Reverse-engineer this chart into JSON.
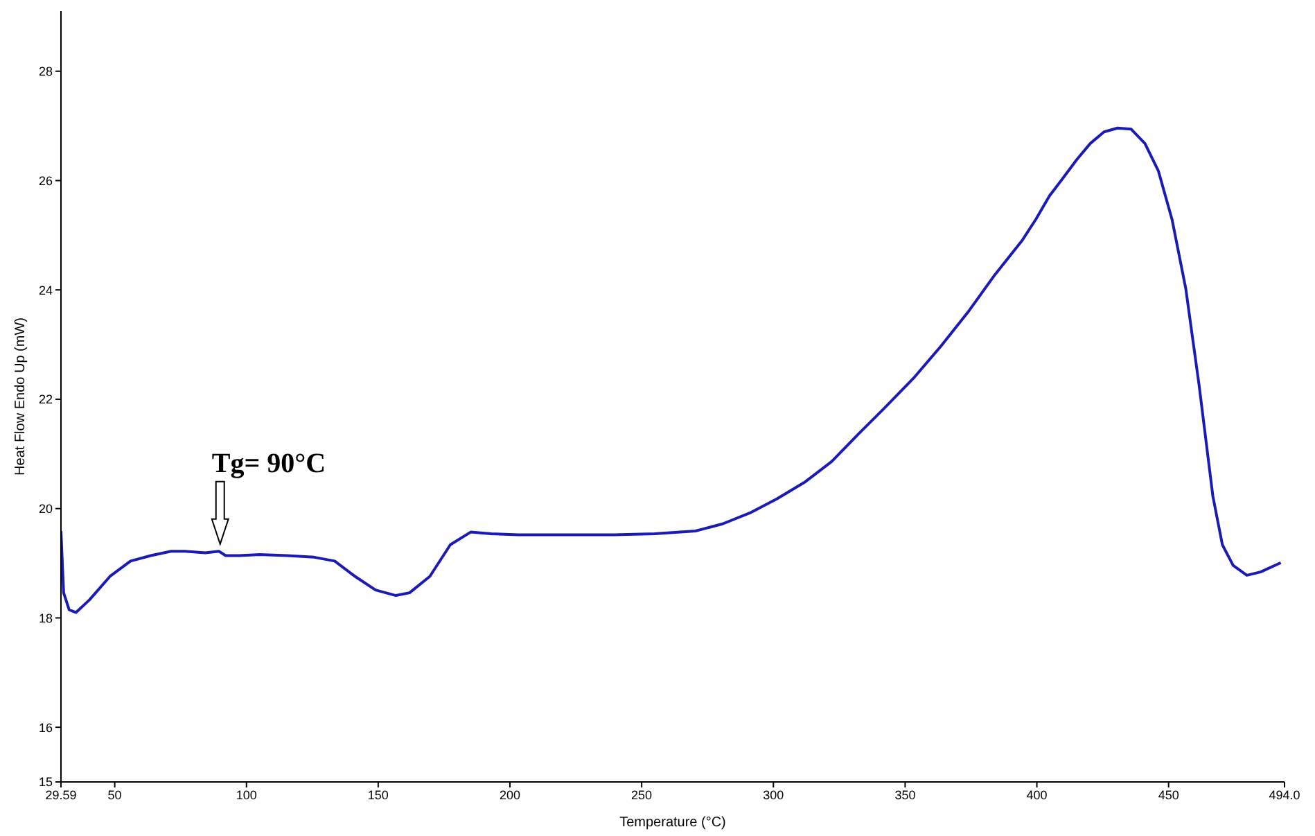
{
  "chart_data": {
    "type": "line",
    "xlabel": "Temperature (°C)",
    "ylabel": "Heat Flow Endo Up (mW)",
    "xlim": [
      29.59,
      494
    ],
    "xticks": [
      29.59,
      50,
      100,
      150,
      200,
      250,
      300,
      350,
      400,
      450,
      {
        "value": 494,
        "label": "494.0"
      }
    ],
    "ylim": [
      15,
      29.1
    ],
    "yticks": [
      15,
      16,
      18,
      20,
      22,
      24,
      26,
      28
    ],
    "grid": false,
    "legend": false,
    "marker": "none",
    "line_style": "solid",
    "annotations": [
      {
        "text": "Tg= 90°C",
        "x": 90,
        "y": 19.2
      }
    ],
    "series": [
      {
        "color": "#1a1ab4",
        "x": [
          29.59,
          30.6,
          32.7,
          35.3,
          40.4,
          48.2,
          56.0,
          63.7,
          71.4,
          76.6,
          84.4,
          89.5,
          92.1,
          97.3,
          105.0,
          115.4,
          125.7,
          133.5,
          141.2,
          149.0,
          156.7,
          161.9,
          169.6,
          177.4,
          185.1,
          192.9,
          203.2,
          213.6,
          223.9,
          239.4,
          254.9,
          270.4,
          280.7,
          291.1,
          301.4,
          311.8,
          322.1,
          332.4,
          342.8,
          353.1,
          363.4,
          373.8,
          384.1,
          394.5,
          399.6,
          404.8,
          410.0,
          415.1,
          420.3,
          425.5,
          430.6,
          435.8,
          441.0,
          446.1,
          451.3,
          456.5,
          461.6,
          466.8,
          470.4,
          474.5,
          479.7,
          484.9,
          492.6
        ],
        "values": [
          19.59,
          18.46,
          18.15,
          18.1,
          18.33,
          18.76,
          19.04,
          19.14,
          19.22,
          19.22,
          19.19,
          19.22,
          19.14,
          19.14,
          19.16,
          19.14,
          19.11,
          19.04,
          18.76,
          18.51,
          18.41,
          18.46,
          18.76,
          19.34,
          19.57,
          19.54,
          19.52,
          19.52,
          19.52,
          19.52,
          19.54,
          19.59,
          19.72,
          19.92,
          20.18,
          20.48,
          20.86,
          21.37,
          21.87,
          22.38,
          22.96,
          23.59,
          24.28,
          24.91,
          25.29,
          25.72,
          26.05,
          26.38,
          26.68,
          26.89,
          26.96,
          26.94,
          26.68,
          26.18,
          25.29,
          24.03,
          22.25,
          20.23,
          19.34,
          18.96,
          18.78,
          18.84,
          19.01
        ]
      }
    ]
  }
}
